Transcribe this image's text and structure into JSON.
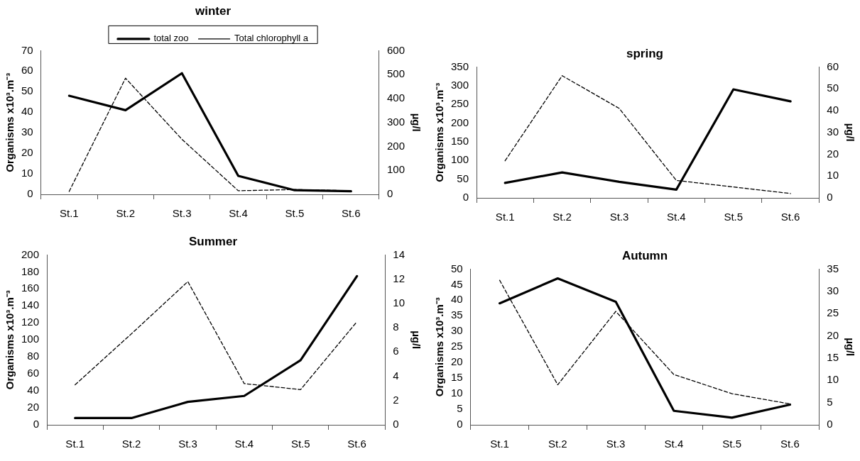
{
  "chart_data": [
    {
      "type": "line",
      "title": "winter",
      "categories": [
        "St.1",
        "St.2",
        "St.3",
        "St.4",
        "St.5",
        "St.6"
      ],
      "ylabel": "Organisms x10³.m⁻³",
      "y2label": "µg/l",
      "ylim": [
        0,
        70
      ],
      "yticks": [
        0,
        10,
        20,
        30,
        40,
        50,
        60,
        70
      ],
      "y2lim": [
        0,
        600
      ],
      "y2ticks": [
        0,
        100,
        200,
        300,
        400,
        500,
        600
      ],
      "grid": false,
      "legend": "top",
      "marker": "none",
      "series": [
        {
          "name": "total zoo",
          "color": "#000000",
          "line_style": "solid",
          "values": [
            48,
            41,
            59,
            9,
            2,
            1.5
          ]
        },
        {
          "name": "Total chlorophyll a",
          "color": "#000000",
          "line_style": "dashed",
          "axis": "y2",
          "values": [
            12,
            485,
            230,
            15,
            20,
            15
          ]
        }
      ]
    },
    {
      "type": "line",
      "title": "spring",
      "categories": [
        "St.1",
        "St.2",
        "St.3",
        "St.4",
        "St.5",
        "St.6"
      ],
      "ylabel": "Organisms x10³.m⁻³",
      "y2label": "µg/l",
      "ylim": [
        0,
        350
      ],
      "yticks": [
        0,
        50,
        100,
        150,
        200,
        250,
        300,
        350
      ],
      "y2lim": [
        0,
        60
      ],
      "y2ticks": [
        0,
        10,
        20,
        30,
        40,
        50,
        60
      ],
      "grid": false,
      "marker": "none",
      "series": [
        {
          "color": "#000000",
          "line_style": "solid",
          "values": [
            40,
            68,
            43,
            22,
            290,
            258
          ]
        },
        {
          "color": "#000000",
          "line_style": "dashed",
          "axis": "y2",
          "values": [
            17,
            56,
            41,
            8,
            5,
            2
          ]
        }
      ]
    },
    {
      "type": "line",
      "title": "Summer",
      "categories": [
        "St.1",
        "St.2",
        "St.3",
        "St.4",
        "St.5",
        "St.6"
      ],
      "ylabel": "Organisms x10³.m⁻³",
      "y2label": "µg/l",
      "ylim": [
        0,
        200
      ],
      "yticks": [
        0,
        20,
        40,
        60,
        80,
        100,
        120,
        140,
        160,
        180,
        200
      ],
      "y2lim": [
        0,
        14
      ],
      "y2ticks": [
        0,
        2,
        4,
        6,
        8,
        10,
        12,
        14
      ],
      "grid": false,
      "marker": "none",
      "series": [
        {
          "color": "#000000",
          "line_style": "solid",
          "values": [
            8,
            8,
            27,
            34,
            76,
            175
          ]
        },
        {
          "color": "#000000",
          "line_style": "dashed",
          "axis": "y2",
          "values": [
            3.3,
            7.5,
            11.8,
            3.4,
            2.9,
            8.5
          ]
        }
      ]
    },
    {
      "type": "line",
      "title": "Autumn",
      "categories": [
        "St.1",
        "St.2",
        "St.3",
        "St.4",
        "St.5",
        "St.6"
      ],
      "ylabel": "Organisms x10³.m⁻³",
      "y2label": "µg/l",
      "ylim": [
        0,
        50
      ],
      "yticks": [
        0,
        5,
        10,
        15,
        20,
        25,
        30,
        35,
        40,
        45,
        50
      ],
      "y2lim": [
        0,
        35
      ],
      "y2ticks": [
        0,
        5,
        10,
        15,
        20,
        25,
        30,
        35
      ],
      "grid": false,
      "marker": "none",
      "series": [
        {
          "color": "#000000",
          "line_style": "solid",
          "values": [
            39,
            47,
            39.5,
            4.5,
            2.3,
            6.5
          ]
        },
        {
          "color": "#000000",
          "line_style": "dashed",
          "axis": "y2",
          "values": [
            32.5,
            9,
            25.5,
            11.3,
            7,
            4.7
          ]
        }
      ]
    }
  ]
}
